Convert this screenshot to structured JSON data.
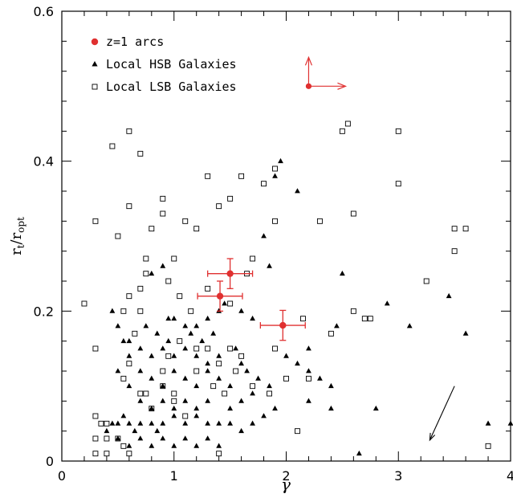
{
  "chart_data": {
    "type": "scatter",
    "xlabel": "γ",
    "ylabel": "r_t/r_opt",
    "ylabel_parts": {
      "main": "r",
      "sub1": "t",
      "slash": "/r",
      "sub2": "opt"
    },
    "xlim": [
      0,
      4
    ],
    "ylim": [
      0,
      0.6
    ],
    "xticks": [
      0,
      1,
      2,
      3,
      4
    ],
    "xtick_labels": [
      "0",
      "1",
      "2",
      "3",
      "4"
    ],
    "yticks": [
      0,
      0.2,
      0.4,
      0.6
    ],
    "ytick_labels": [
      "0",
      "0.2",
      "0.4",
      "0.6"
    ],
    "grid": false,
    "legend_position": "top-left",
    "colors": {
      "arcs": "#e03030",
      "hsb": "#000000",
      "lsb": "#000000",
      "arrow": "#000000"
    },
    "series": [
      {
        "name": "z=1 arcs",
        "marker": "filled-circle",
        "points": [
          {
            "x": 1.5,
            "y": 0.25,
            "xerr": 0.2,
            "yerr": 0.02
          },
          {
            "x": 1.41,
            "y": 0.22,
            "xerr": 0.2,
            "yerr": 0.02
          },
          {
            "x": 1.97,
            "y": 0.181,
            "xerr": 0.2,
            "yerr": 0.02
          }
        ]
      },
      {
        "name": "Local HSB Galaxies",
        "marker": "filled-triangle",
        "points": [
          [
            0.45,
            0.2
          ],
          [
            0.5,
            0.18
          ],
          [
            0.55,
            0.16
          ],
          [
            0.6,
            0.16
          ],
          [
            0.75,
            0.18
          ],
          [
            0.8,
            0.25
          ],
          [
            0.9,
            0.26
          ],
          [
            0.95,
            0.19
          ],
          [
            1.0,
            0.19
          ],
          [
            1.1,
            0.18
          ],
          [
            1.2,
            0.18
          ],
          [
            1.3,
            0.19
          ],
          [
            1.4,
            0.2
          ],
          [
            1.45,
            0.21
          ],
          [
            1.6,
            0.2
          ],
          [
            1.7,
            0.19
          ],
          [
            1.8,
            0.3
          ],
          [
            1.85,
            0.26
          ],
          [
            1.95,
            0.4
          ],
          [
            1.9,
            0.38
          ],
          [
            2.1,
            0.36
          ],
          [
            2.2,
            0.15
          ],
          [
            2.5,
            0.25
          ],
          [
            2.9,
            0.21
          ],
          [
            3.1,
            0.18
          ],
          [
            3.45,
            0.22
          ],
          [
            3.6,
            0.17
          ],
          [
            3.8,
            0.05
          ],
          [
            4.0,
            0.05
          ],
          [
            0.4,
            0.04
          ],
          [
            0.45,
            0.05
          ],
          [
            0.5,
            0.05
          ],
          [
            0.55,
            0.06
          ],
          [
            0.6,
            0.05
          ],
          [
            0.65,
            0.04
          ],
          [
            0.7,
            0.05
          ],
          [
            0.8,
            0.05
          ],
          [
            0.85,
            0.04
          ],
          [
            0.9,
            0.05
          ],
          [
            1.0,
            0.06
          ],
          [
            1.1,
            0.05
          ],
          [
            1.2,
            0.06
          ],
          [
            1.3,
            0.05
          ],
          [
            1.4,
            0.05
          ],
          [
            1.5,
            0.05
          ],
          [
            1.6,
            0.04
          ],
          [
            1.7,
            0.05
          ],
          [
            1.8,
            0.06
          ],
          [
            1.9,
            0.07
          ],
          [
            0.5,
            0.03
          ],
          [
            0.6,
            0.02
          ],
          [
            0.7,
            0.03
          ],
          [
            0.8,
            0.02
          ],
          [
            0.9,
            0.03
          ],
          [
            1.0,
            0.02
          ],
          [
            1.1,
            0.03
          ],
          [
            1.2,
            0.02
          ],
          [
            1.3,
            0.03
          ],
          [
            1.4,
            0.02
          ],
          [
            0.6,
            0.1
          ],
          [
            0.7,
            0.12
          ],
          [
            0.8,
            0.11
          ],
          [
            0.9,
            0.1
          ],
          [
            1.0,
            0.12
          ],
          [
            1.1,
            0.11
          ],
          [
            1.2,
            0.1
          ],
          [
            1.3,
            0.12
          ],
          [
            1.4,
            0.11
          ],
          [
            1.5,
            0.1
          ],
          [
            0.6,
            0.14
          ],
          [
            0.7,
            0.15
          ],
          [
            0.8,
            0.14
          ],
          [
            0.9,
            0.15
          ],
          [
            1.0,
            0.14
          ],
          [
            1.1,
            0.15
          ],
          [
            1.2,
            0.14
          ],
          [
            1.3,
            0.13
          ],
          [
            1.4,
            0.14
          ],
          [
            1.6,
            0.13
          ],
          [
            0.7,
            0.08
          ],
          [
            0.8,
            0.07
          ],
          [
            0.9,
            0.08
          ],
          [
            1.0,
            0.07
          ],
          [
            1.1,
            0.08
          ],
          [
            1.2,
            0.07
          ],
          [
            1.3,
            0.08
          ],
          [
            1.5,
            0.07
          ],
          [
            1.6,
            0.08
          ],
          [
            1.7,
            0.09
          ],
          [
            0.5,
            0.12
          ],
          [
            0.85,
            0.17
          ],
          [
            0.95,
            0.16
          ],
          [
            1.15,
            0.17
          ],
          [
            1.25,
            0.16
          ],
          [
            1.35,
            0.17
          ],
          [
            1.55,
            0.15
          ],
          [
            1.65,
            0.12
          ],
          [
            1.75,
            0.11
          ],
          [
            1.85,
            0.1
          ],
          [
            2.0,
            0.14
          ],
          [
            2.1,
            0.13
          ],
          [
            2.2,
            0.12
          ],
          [
            2.3,
            0.11
          ],
          [
            2.4,
            0.1
          ],
          [
            2.2,
            0.08
          ],
          [
            2.4,
            0.07
          ],
          [
            2.45,
            0.18
          ],
          [
            2.8,
            0.07
          ],
          [
            2.65,
            0.01
          ]
        ]
      },
      {
        "name": "Local LSB Galaxies",
        "marker": "open-square",
        "points": [
          [
            0.2,
            0.21
          ],
          [
            0.3,
            0.32
          ],
          [
            0.3,
            0.15
          ],
          [
            0.45,
            0.42
          ],
          [
            0.5,
            0.3
          ],
          [
            0.55,
            0.2
          ],
          [
            0.6,
            0.44
          ],
          [
            0.6,
            0.34
          ],
          [
            0.7,
            0.41
          ],
          [
            0.75,
            0.27
          ],
          [
            0.8,
            0.31
          ],
          [
            0.9,
            0.35
          ],
          [
            0.9,
            0.33
          ],
          [
            1.0,
            0.27
          ],
          [
            1.1,
            0.32
          ],
          [
            1.2,
            0.31
          ],
          [
            1.3,
            0.38
          ],
          [
            1.4,
            0.34
          ],
          [
            1.5,
            0.35
          ],
          [
            1.6,
            0.38
          ],
          [
            1.7,
            0.27
          ],
          [
            1.8,
            0.37
          ],
          [
            1.9,
            0.39
          ],
          [
            1.9,
            0.32
          ],
          [
            2.3,
            0.32
          ],
          [
            2.5,
            0.44
          ],
          [
            2.55,
            0.45
          ],
          [
            2.6,
            0.33
          ],
          [
            3.0,
            0.44
          ],
          [
            3.0,
            0.37
          ],
          [
            3.25,
            0.24
          ],
          [
            3.5,
            0.31
          ],
          [
            3.5,
            0.28
          ],
          [
            3.6,
            0.31
          ],
          [
            2.6,
            0.2
          ],
          [
            2.7,
            0.19
          ],
          [
            2.75,
            0.19
          ],
          [
            2.4,
            0.17
          ],
          [
            3.8,
            0.02
          ],
          [
            0.3,
            0.06
          ],
          [
            0.35,
            0.05
          ],
          [
            0.4,
            0.03
          ],
          [
            0.4,
            0.01
          ],
          [
            0.5,
            0.03
          ],
          [
            0.55,
            0.02
          ],
          [
            0.6,
            0.01
          ],
          [
            0.3,
            0.01
          ],
          [
            0.3,
            0.03
          ],
          [
            0.4,
            0.05
          ],
          [
            0.55,
            0.11
          ],
          [
            0.6,
            0.13
          ],
          [
            0.7,
            0.09
          ],
          [
            0.75,
            0.09
          ],
          [
            0.8,
            0.07
          ],
          [
            0.9,
            0.12
          ],
          [
            0.9,
            0.1
          ],
          [
            1.0,
            0.09
          ],
          [
            1.0,
            0.08
          ],
          [
            1.1,
            0.06
          ],
          [
            1.2,
            0.12
          ],
          [
            1.3,
            0.15
          ],
          [
            1.35,
            0.1
          ],
          [
            1.4,
            0.13
          ],
          [
            1.45,
            0.09
          ],
          [
            1.5,
            0.15
          ],
          [
            1.55,
            0.12
          ],
          [
            1.6,
            0.14
          ],
          [
            1.7,
            0.1
          ],
          [
            1.85,
            0.09
          ],
          [
            1.9,
            0.15
          ],
          [
            2.0,
            0.11
          ],
          [
            2.1,
            0.04
          ],
          [
            2.2,
            0.11
          ],
          [
            1.3,
            0.23
          ],
          [
            1.5,
            0.21
          ],
          [
            1.65,
            0.25
          ],
          [
            2.15,
            0.19
          ],
          [
            0.7,
            0.23
          ],
          [
            0.65,
            0.17
          ],
          [
            0.6,
            0.22
          ],
          [
            0.7,
            0.2
          ],
          [
            0.75,
            0.25
          ],
          [
            0.95,
            0.24
          ],
          [
            1.05,
            0.22
          ],
          [
            1.15,
            0.2
          ],
          [
            0.95,
            0.14
          ],
          [
            1.05,
            0.16
          ],
          [
            1.2,
            0.15
          ],
          [
            1.4,
            0.01
          ]
        ]
      }
    ],
    "annotations": [
      {
        "type": "corner-arrows",
        "x": 2.2,
        "y": 0.5,
        "color": "#e03030",
        "note": "up and right arrows"
      },
      {
        "type": "arrow",
        "from": [
          3.5,
          0.1
        ],
        "to": [
          3.28,
          0.028
        ],
        "color": "#000000"
      }
    ]
  }
}
